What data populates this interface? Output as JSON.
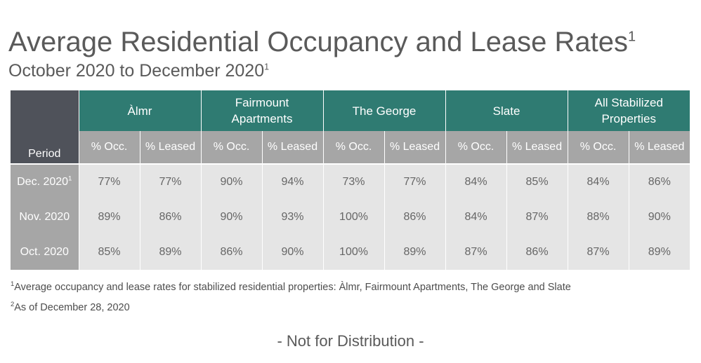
{
  "title": {
    "text": "Average Residential Occupancy and Lease Rates",
    "marker": "1"
  },
  "subtitle": {
    "text": "October 2020 to December 2020",
    "marker": "1"
  },
  "table": {
    "period_header": "Period",
    "properties": [
      {
        "name": "Àlmr",
        "sub_headers": [
          "% Occ.",
          "% Leased"
        ]
      },
      {
        "name": "Fairmount Apartments",
        "sub_headers": [
          "% Occ.",
          "% Leased"
        ]
      },
      {
        "name": "The George",
        "sub_headers": [
          "% Occ.",
          "% Leased"
        ]
      },
      {
        "name": "Slate",
        "sub_headers": [
          "% Occ.",
          "% Leased"
        ]
      },
      {
        "name": "All Stabilized Properties",
        "sub_headers": [
          "% Occ.",
          "% Leased"
        ]
      }
    ],
    "rows": [
      {
        "period": "Dec. 2020",
        "marker": "1",
        "values": [
          "77%",
          "77%",
          "90%",
          "94%",
          "73%",
          "77%",
          "84%",
          "85%",
          "84%",
          "86%"
        ]
      },
      {
        "period": "Nov. 2020",
        "marker": "",
        "values": [
          "89%",
          "86%",
          "90%",
          "93%",
          "100%",
          "86%",
          "84%",
          "87%",
          "88%",
          "90%"
        ]
      },
      {
        "period": "Oct. 2020",
        "marker": "",
        "values": [
          "85%",
          "89%",
          "86%",
          "90%",
          "100%",
          "89%",
          "87%",
          "86%",
          "87%",
          "89%"
        ]
      }
    ]
  },
  "footnotes": [
    {
      "marker": "1",
      "text": "Average occupancy and lease rates for stabilized residential properties: Àlmr, Fairmount Apartments, The George and Slate"
    },
    {
      "marker": "2",
      "text": "As of December 28, 2020"
    }
  ],
  "notice": "- Not for Distribution -",
  "colors": {
    "header_teal": "#2f7b72",
    "header_dark": "#4f525a",
    "subheader_gray": "#a6a6a6",
    "cell_gray": "#e5e5e5"
  }
}
